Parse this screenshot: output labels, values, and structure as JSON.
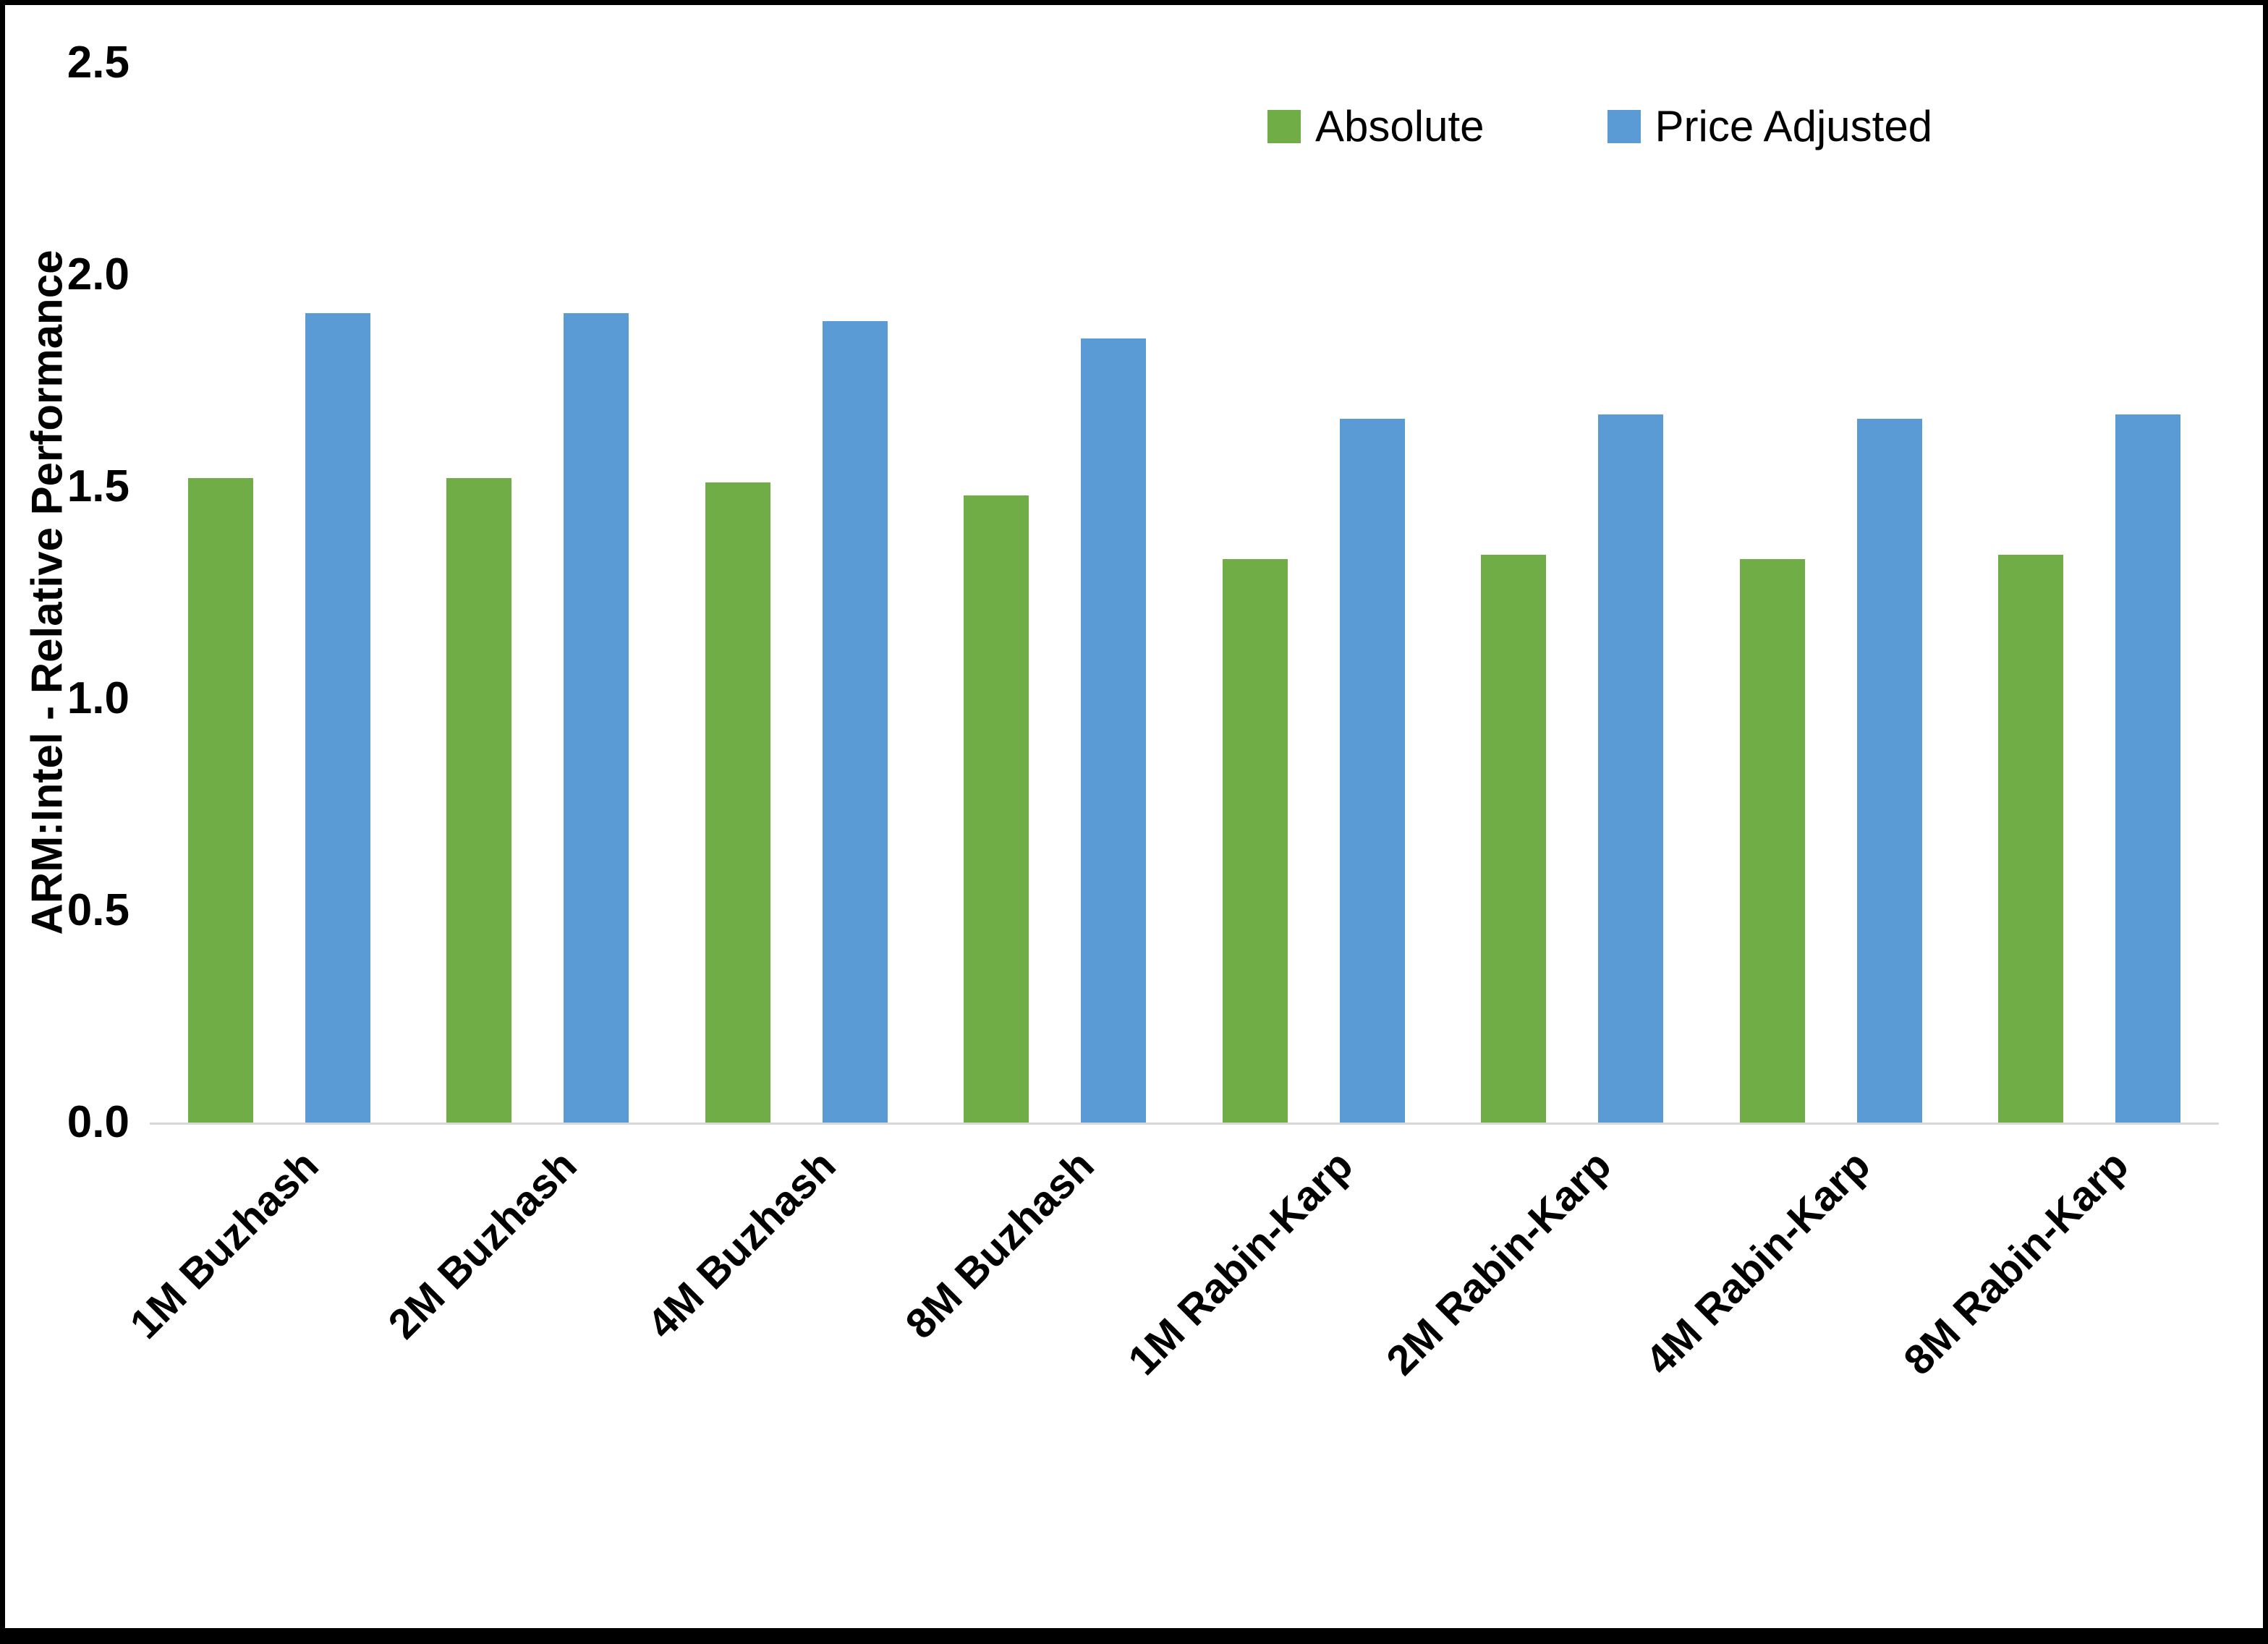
{
  "chart_data": {
    "type": "bar",
    "title": "",
    "ylabel": "ARM:Intel - Relative Performance",
    "xlabel": "",
    "ylim": [
      0,
      2.5
    ],
    "yticks": [
      "0.0",
      "0.5",
      "1.0",
      "1.5",
      "2.0",
      "2.5"
    ],
    "grid": false,
    "legend_position": "top-right",
    "axis_line_color": "#d6d6d6",
    "categories": [
      "1M Buzhash",
      "2M Buzhash",
      "4M Buzhash",
      "8M Buzhash",
      "1M Rabin-Karp",
      "2M Rabin-Karp",
      "4M Rabin-Karp",
      "8M Rabin-Karp"
    ],
    "series": [
      {
        "name": "Absolute",
        "color": "#70AD47",
        "values": [
          1.52,
          1.52,
          1.51,
          1.48,
          1.33,
          1.34,
          1.33,
          1.34
        ]
      },
      {
        "name": "Price Adjusted",
        "color": "#5B9BD5",
        "values": [
          1.91,
          1.91,
          1.89,
          1.85,
          1.66,
          1.67,
          1.66,
          1.67
        ]
      }
    ]
  }
}
